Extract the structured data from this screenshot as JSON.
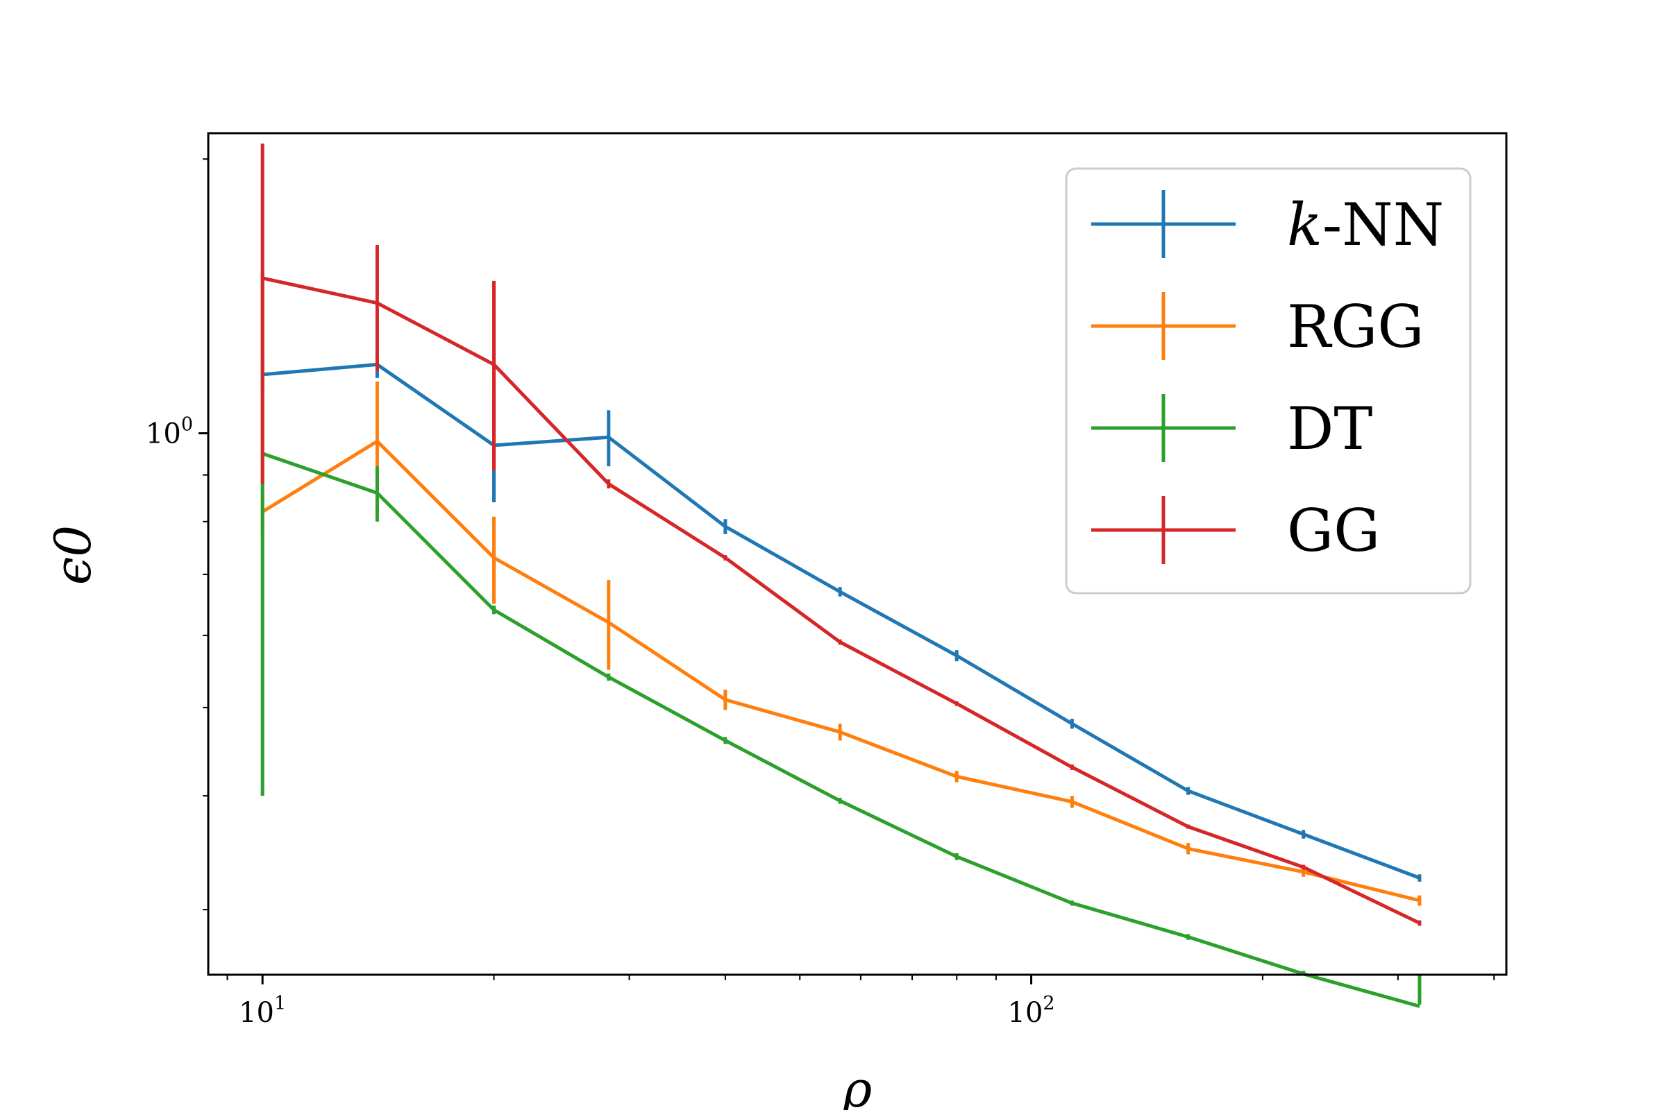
{
  "chart_data": {
    "type": "line",
    "xlabel": "ρ",
    "ylabel": "ϵ0",
    "xscale": "log",
    "yscale": "log",
    "xlim": [
      8.5,
      415
    ],
    "ylim": [
      0.2545,
      2.135
    ],
    "grid": false,
    "legend_position": "top-right",
    "x_ticks": [
      {
        "value": 10,
        "base": "10",
        "exp": "1"
      },
      {
        "value": 100,
        "base": "10",
        "exp": "2"
      }
    ],
    "y_ticks": [
      {
        "value": 1,
        "base": "10",
        "exp": "0"
      }
    ],
    "x": [
      10,
      14.1,
      20,
      28.2,
      40,
      56.4,
      80,
      113,
      160,
      226,
      320
    ],
    "series": [
      {
        "name": "k-NN",
        "color": "#1f77b4",
        "values": [
          1.16,
          1.19,
          0.97,
          0.99,
          0.79,
          0.67,
          0.57,
          0.48,
          0.405,
          0.363,
          0.325
        ],
        "err": [
          0.05,
          0.04,
          0.13,
          0.07,
          0.015,
          0.008,
          0.008,
          0.006,
          0.004,
          0.004,
          0.003
        ]
      },
      {
        "name": "RGG",
        "color": "#ff7f0e",
        "values": [
          0.82,
          0.98,
          0.73,
          0.62,
          0.51,
          0.47,
          0.42,
          0.394,
          0.35,
          0.33,
          0.307
        ],
        "err": [
          0.04,
          0.16,
          0.08,
          0.07,
          0.013,
          0.01,
          0.006,
          0.006,
          0.005,
          0.004,
          0.004
        ]
      },
      {
        "name": "DT",
        "color": "#2ca02c",
        "values": [
          0.95,
          0.86,
          0.64,
          0.54,
          0.46,
          0.395,
          0.343,
          0.305,
          0.28,
          0.255,
          0.235
        ],
        "err": [
          0.55,
          0.06,
          0.007,
          0.005,
          0.004,
          0.003,
          0.003,
          0.002,
          0.002,
          0.002,
          0.001
        ]
      },
      {
        "name": "GG",
        "color": "#d62728",
        "values": [
          1.48,
          1.39,
          1.19,
          0.88,
          0.73,
          0.59,
          0.505,
          0.43,
          0.37,
          0.334,
          0.29
        ],
        "err": [
          0.6,
          0.22,
          0.28,
          0.01,
          0.005,
          0.004,
          0.003,
          0.003,
          0.002,
          0.002,
          0.002
        ]
      }
    ]
  }
}
